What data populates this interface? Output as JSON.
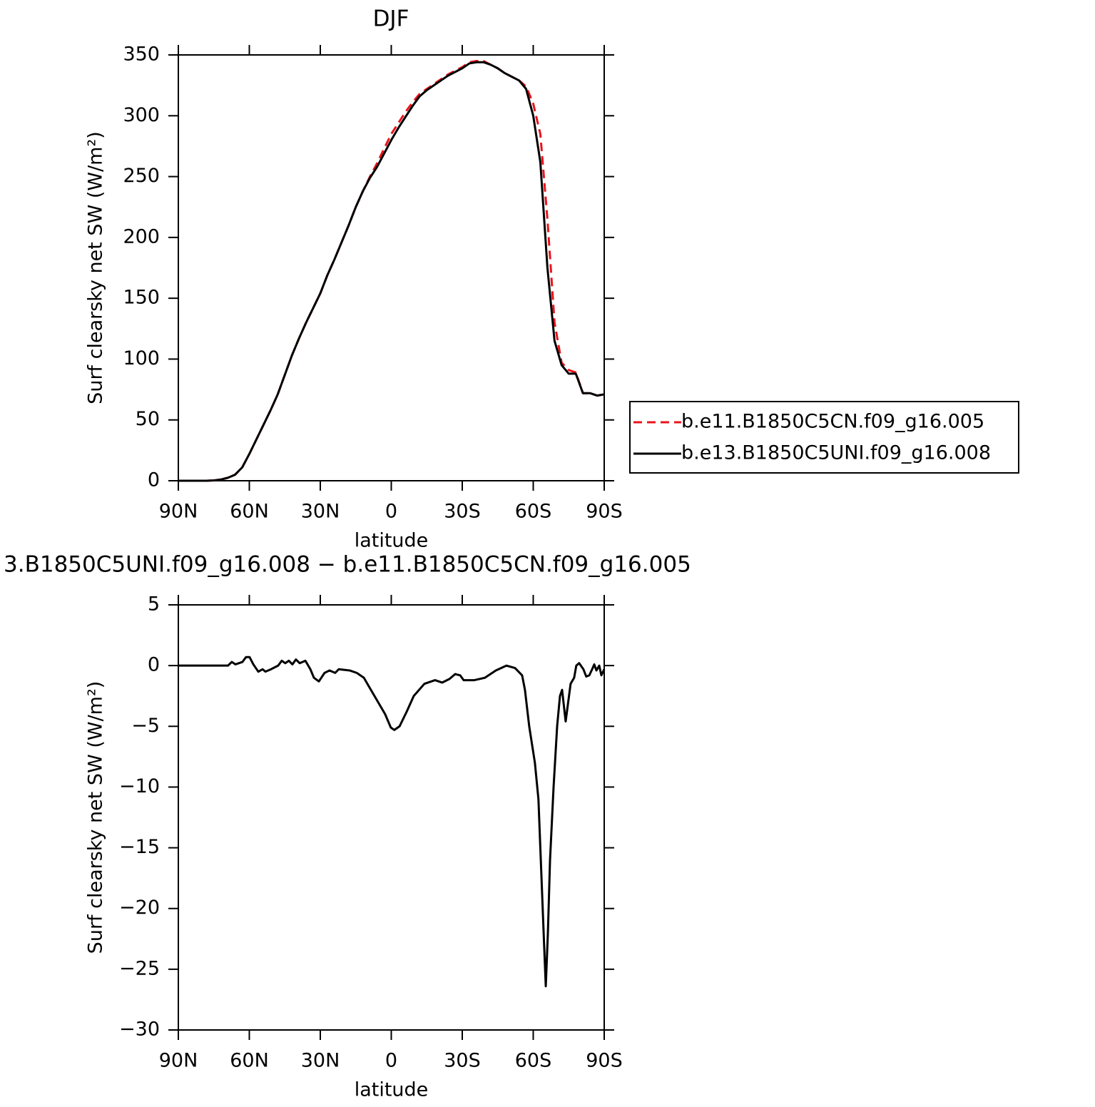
{
  "chart_data": [
    {
      "type": "line",
      "title": "DJF",
      "xlabel": "latitude",
      "ylabel": "Surf clearsky net SW (W/m²)",
      "x": [
        90,
        87,
        84,
        81,
        78,
        75,
        72,
        69,
        66,
        63,
        60,
        57,
        54,
        51,
        48,
        45,
        42,
        39,
        36,
        33,
        30,
        27,
        24,
        21,
        18,
        15,
        12,
        9,
        6,
        3,
        0,
        -3,
        -6,
        -9,
        -12,
        -15,
        -18,
        -21,
        -24,
        -27,
        -30,
        -33,
        -36,
        -39,
        -42,
        -45,
        -48,
        -51,
        -54,
        -57,
        -60,
        -63,
        -66,
        -69,
        -72,
        -75,
        -78,
        -81,
        -84,
        -87,
        -90
      ],
      "series": [
        {
          "name": "b.e11.B1850C5CN.f09_g16.005",
          "color": "#e8141c",
          "line_style": "dashed",
          "values": [
            0,
            0,
            0,
            0,
            0,
            0.3,
            1,
            2.5,
            5,
            11,
            22,
            34,
            46,
            58,
            71,
            87,
            103,
            117,
            130,
            142,
            154,
            169,
            182,
            196,
            210,
            225,
            238,
            250,
            261,
            273,
            285,
            294,
            303,
            311,
            318,
            322,
            326,
            330,
            334,
            337,
            340,
            344,
            345,
            345,
            342,
            339,
            335,
            332,
            329,
            324,
            310,
            285,
            215,
            130,
            97,
            91,
            89,
            72,
            72,
            70,
            71
          ]
        },
        {
          "name": "b.e13.B1850C5UNI.f09_g16.008",
          "color": "#000000",
          "line_style": "solid",
          "values": [
            0,
            0,
            0,
            0,
            0,
            0.3,
            1,
            2.5,
            5,
            11,
            22,
            34,
            46,
            58,
            71,
            87,
            103,
            117,
            130,
            142,
            154,
            169,
            182,
            196,
            210,
            225,
            238,
            249,
            258,
            269,
            280,
            290,
            299,
            308,
            316,
            321,
            325,
            329,
            333,
            336,
            339,
            343,
            344,
            344,
            342,
            339,
            335,
            332,
            329,
            322,
            300,
            262,
            175,
            115,
            95,
            88,
            88,
            72,
            72,
            70,
            71
          ]
        }
      ],
      "xlim": [
        90,
        -90
      ],
      "xticks": [
        {
          "value": 90,
          "label": "90N"
        },
        {
          "value": 60,
          "label": "60N"
        },
        {
          "value": 30,
          "label": "30N"
        },
        0,
        {
          "value": -30,
          "label": "30S"
        },
        {
          "value": -60,
          "label": "60S"
        },
        {
          "value": -90,
          "label": "90S"
        }
      ],
      "ylim": [
        0,
        350
      ],
      "yticks": [
        0,
        50,
        100,
        150,
        200,
        250,
        300,
        350
      ],
      "legend": "right"
    },
    {
      "type": "line",
      "title": "3.B1850C5UNI.f09_g16.008 − b.e11.B1850C5CN.f09_g16.005",
      "xlabel": "latitude",
      "ylabel": "Surf clearsky net SW (W/m²)",
      "x": [
        90,
        69,
        67.4,
        65.9,
        62.9,
        61.4,
        59.9,
        58.3,
        56.2,
        54.4,
        53.2,
        50.8,
        47.8,
        46.3,
        44.8,
        43.3,
        41.8,
        40.3,
        38.7,
        36.3,
        34.2,
        32.7,
        30.6,
        28.2,
        26.1,
        23.7,
        22.2,
        17.6,
        14.6,
        11.6,
        8.6,
        5.6,
        2.6,
        0.2,
        -1.3,
        -3.5,
        -6.5,
        -9.5,
        -14,
        -18.5,
        -21.5,
        -24.6,
        -27,
        -29.1,
        -30.6,
        -35.1,
        -39.6,
        -44.2,
        -48.7,
        -52.3,
        -55.3,
        -56.5,
        -58.3,
        -60.7,
        -62.2,
        -63.2,
        -64.4,
        -65.3,
        -66.2,
        -67.1,
        -68.6,
        -70.1,
        -71.3,
        -72.2,
        -73.7,
        -75.8,
        -77.3,
        -78.2,
        -79.4,
        -81.2,
        -82.4,
        -83.7,
        -84.9,
        -85.8,
        -86.7,
        -87.9,
        -88.8,
        -90
      ],
      "series": [
        {
          "color": "#000000",
          "line_style": "solid",
          "values": [
            0,
            0,
            0.3,
            0.1,
            0.3,
            0.7,
            0.7,
            0.1,
            -0.5,
            -0.3,
            -0.5,
            -0.3,
            0,
            0.4,
            0.2,
            0.4,
            0.1,
            0.5,
            0.2,
            0.4,
            -0.3,
            -1,
            -1.3,
            -0.6,
            -0.4,
            -0.6,
            -0.3,
            -0.4,
            -0.6,
            -1,
            -2,
            -3,
            -4,
            -5.1,
            -5.3,
            -5,
            -3.8,
            -2.5,
            -1.5,
            -1.2,
            -1.4,
            -1.1,
            -0.7,
            -0.8,
            -1.2,
            -1.2,
            -1,
            -0.4,
            0,
            -0.2,
            -0.8,
            -2,
            -5,
            -8,
            -11,
            -16,
            -22,
            -26.4,
            -22,
            -16,
            -10,
            -5,
            -2.5,
            -2,
            -4.6,
            -1.5,
            -1,
            0,
            0.2,
            -0.3,
            -0.9,
            -0.8,
            -0.3,
            0.1,
            -0.4,
            0,
            -0.8,
            -0.3
          ]
        }
      ],
      "xlim": [
        90,
        -90
      ],
      "xticks": [
        {
          "value": 90,
          "label": "90N"
        },
        {
          "value": 60,
          "label": "60N"
        },
        {
          "value": 30,
          "label": "30N"
        },
        0,
        {
          "value": -30,
          "label": "30S"
        },
        {
          "value": -60,
          "label": "60S"
        },
        {
          "value": -90,
          "label": "90S"
        }
      ],
      "ylim": [
        -30,
        5
      ],
      "yticks": [
        {
          "value": -30,
          "label": "−30"
        },
        {
          "value": -25,
          "label": "−25"
        },
        {
          "value": -20,
          "label": "−20"
        },
        {
          "value": -15,
          "label": "−15"
        },
        {
          "value": -10,
          "label": "−10"
        },
        {
          "value": -5,
          "label": "−5"
        },
        0,
        5
      ]
    }
  ]
}
